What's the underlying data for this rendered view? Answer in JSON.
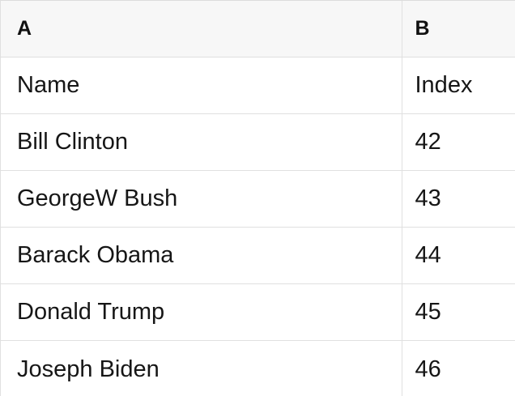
{
  "table": {
    "column_headers": [
      {
        "label": "A"
      },
      {
        "label": "B"
      }
    ],
    "rows": [
      {
        "a": "Name",
        "b": "Index"
      },
      {
        "a": "Bill Clinton",
        "b": "42"
      },
      {
        "a": "GeorgeW Bush",
        "b": "43"
      },
      {
        "a": "Barack Obama",
        "b": "44"
      },
      {
        "a": "Donald Trump",
        "b": "45"
      },
      {
        "a": "Joseph Biden",
        "b": "46"
      }
    ]
  },
  "colors": {
    "header_bg": "#f7f7f7",
    "border": "#e0e0e0",
    "outer_border": "#dcdcdc",
    "text": "#161616",
    "row_bg": "#ffffff"
  }
}
